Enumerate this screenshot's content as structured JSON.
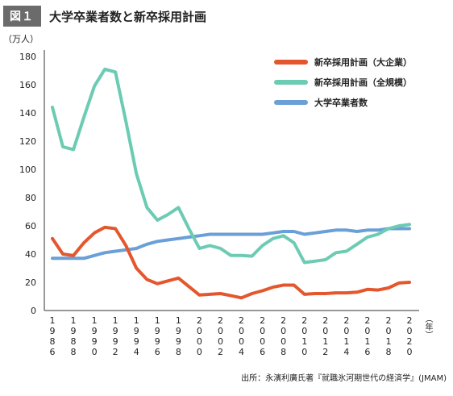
{
  "figure": {
    "badge": "図１",
    "title": "大学卒業者数と新卒採用計画",
    "y_unit": "（万人）",
    "year_unit": "（年）",
    "source": "出所：永濱利廣氏著『就職氷河期世代の経済学』(JMAM)"
  },
  "chart_data": {
    "type": "line",
    "title": "大学卒業者数と新卒採用計画",
    "ylabel": "（万人）",
    "xlabel": "（年）",
    "ylim": [
      0,
      180
    ],
    "yticks": [
      0,
      20,
      40,
      60,
      80,
      100,
      120,
      140,
      160,
      180
    ],
    "xlim": [
      1986,
      2020
    ],
    "xticks": [
      "1986",
      "1988",
      "1990",
      "1992",
      "1994",
      "1996",
      "1998",
      "2000",
      "2002",
      "2004",
      "2006",
      "2008",
      "2010",
      "2012",
      "2014",
      "2016",
      "2018",
      "2020"
    ],
    "grid": false,
    "legend_position": "top-right",
    "x": [
      1986,
      1987,
      1988,
      1989,
      1990,
      1991,
      1992,
      1993,
      1994,
      1995,
      1996,
      1997,
      1998,
      1999,
      2000,
      2001,
      2002,
      2003,
      2004,
      2005,
      2006,
      2007,
      2008,
      2009,
      2010,
      2011,
      2012,
      2013,
      2014,
      2015,
      2016,
      2017,
      2018,
      2019,
      2020
    ],
    "series": [
      {
        "name": "新卒採用計画（大企業）",
        "color": "#e4572e",
        "values": [
          51,
          40,
          39,
          48,
          55,
          59,
          58,
          46,
          30,
          22,
          19,
          21,
          23,
          17,
          11,
          11.5,
          12,
          10.5,
          9,
          12,
          14,
          16.5,
          18,
          18,
          11.5,
          12,
          12,
          12.5,
          12.5,
          13,
          15,
          14.5,
          16,
          19.5,
          20
        ]
      },
      {
        "name": "新卒採用計画（全規模）",
        "color": "#6ccbb3",
        "values": [
          144,
          116,
          114,
          137,
          159,
          171,
          169,
          134,
          97,
          73,
          64,
          68,
          73,
          58,
          44,
          46,
          44,
          39,
          39,
          38.5,
          46,
          51,
          53,
          48,
          34,
          35,
          36,
          41,
          42,
          47,
          52,
          54,
          58,
          60,
          61
        ]
      },
      {
        "name": "大学卒業者数",
        "color": "#6a9fd8",
        "values": [
          37,
          37,
          37,
          37,
          39,
          41,
          42,
          43,
          44,
          47,
          49,
          50,
          51,
          52,
          53,
          54,
          54,
          54,
          54,
          54,
          54,
          55,
          56,
          56,
          54,
          55,
          56,
          57,
          57,
          56,
          57,
          57,
          58,
          58,
          58
        ]
      }
    ]
  }
}
